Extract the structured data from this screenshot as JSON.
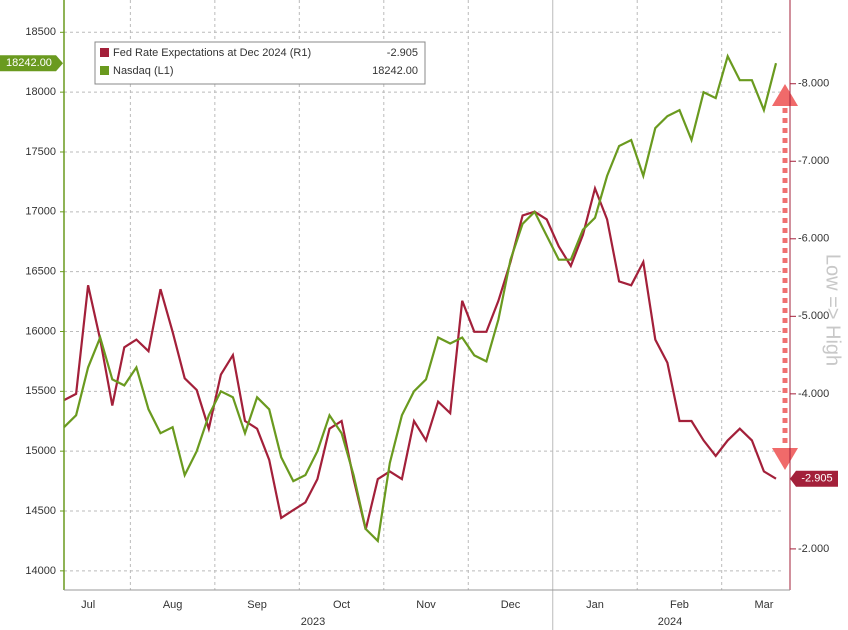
{
  "chart_data": {
    "type": "line",
    "categories": [
      null,
      null,
      "Jul",
      null,
      null,
      null,
      null,
      null,
      null,
      "Aug",
      null,
      null,
      null,
      null,
      null,
      null,
      "Sep",
      null,
      null,
      null,
      null,
      null,
      null,
      "Oct",
      null,
      null,
      null,
      null,
      null,
      null,
      "Nov",
      null,
      null,
      null,
      null,
      null,
      null,
      "Dec",
      null,
      null,
      null,
      null,
      null,
      null,
      "Jan",
      null,
      null,
      null,
      null,
      null,
      null,
      "Feb",
      null,
      null,
      null,
      null,
      null,
      null,
      "Mar",
      null
    ],
    "year_labels": [
      "2023",
      "2024"
    ],
    "series": [
      {
        "name": "Fed Rate Expectations at Dec 2024 (R1)",
        "color": "#a3203a",
        "axis": "y2",
        "last_label": "-2.905",
        "values": [
          -3.92,
          -4.0,
          -5.4,
          -4.7,
          -3.85,
          -4.6,
          -4.7,
          -4.55,
          -5.35,
          -4.8,
          -4.2,
          -4.05,
          -3.55,
          -4.25,
          -4.5,
          -3.65,
          -3.55,
          -3.15,
          -2.4,
          -2.5,
          -2.6,
          -2.9,
          -3.55,
          -3.65,
          -2.9,
          -2.25,
          -2.9,
          -3.0,
          -2.9,
          -3.65,
          -3.4,
          -3.9,
          -3.75,
          -5.2,
          -4.8,
          -4.8,
          -5.2,
          -5.7,
          -6.3,
          -6.35,
          -6.25,
          -5.9,
          -5.65,
          -6.05,
          -6.65,
          -6.25,
          -5.45,
          -5.4,
          -5.7,
          -4.7,
          -4.4,
          -3.65,
          -3.65,
          -3.4,
          -3.2,
          -3.4,
          -3.55,
          -3.4,
          -3.0,
          -2.905
        ]
      },
      {
        "name": "Nasdaq (L1)",
        "color": "#6a9a1f",
        "last_label": "18242.00",
        "values": [
          15200,
          15300,
          15700,
          15950,
          15600,
          15550,
          15700,
          15350,
          15150,
          15200,
          14800,
          15000,
          15300,
          15500,
          15450,
          15150,
          15450,
          15350,
          14950,
          14750,
          14800,
          15000,
          15300,
          15150,
          14800,
          14350,
          14250,
          14900,
          15300,
          15500,
          15600,
          15950,
          15900,
          15950,
          15800,
          15750,
          16100,
          16600,
          16900,
          17000,
          16800,
          16600,
          16600,
          16850,
          16950,
          17300,
          17550,
          17600,
          17300,
          17700,
          17800,
          17850,
          17600,
          18000,
          17950,
          18300,
          18100,
          18100,
          17850,
          18242
        ]
      }
    ],
    "ylim": [
      13840,
      18770
    ],
    "yticks": [
      14000,
      14500,
      15000,
      15500,
      16000,
      16500,
      17000,
      17500,
      18000,
      18500
    ],
    "y2lim": [
      -1.47,
      -9.08
    ],
    "y2ticks": [
      {
        "value": -2,
        "label": "-2.000"
      },
      {
        "value": -4,
        "label": "-4.000"
      },
      {
        "value": -5,
        "label": "-5.000"
      },
      {
        "value": -6,
        "label": "-6.000"
      },
      {
        "value": -7,
        "label": "-7.000"
      },
      {
        "value": -8,
        "label": "-8.000"
      }
    ],
    "y2label": "Low => High",
    "grid": true
  }
}
